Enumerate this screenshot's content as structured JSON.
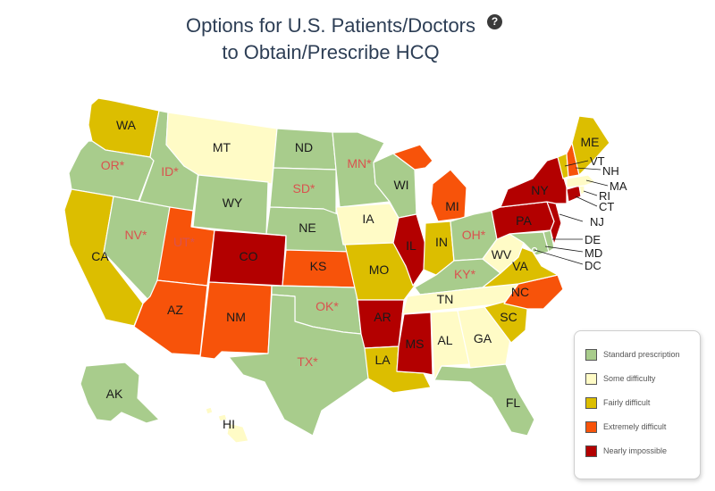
{
  "title": {
    "line1": "Options for U.S. Patients/Doctors",
    "line2": "to Obtain/Prescribe HCQ",
    "help_icon": "question-circle-icon",
    "help_glyph": "?"
  },
  "colors": {
    "standard": "#a8cc8c",
    "some": "#fffbc6",
    "fairly": "#dcbe00",
    "extremely": "#f7530a",
    "nearly": "#b30000"
  },
  "legend": [
    {
      "key": "standard",
      "label": "Standard prescription"
    },
    {
      "key": "some",
      "label": "Some difficulty"
    },
    {
      "key": "fairly",
      "label": "Fairly difficult"
    },
    {
      "key": "extremely",
      "label": "Extremely difficult"
    },
    {
      "key": "nearly",
      "label": "Nearly impossible"
    }
  ],
  "states": [
    {
      "abbr": "WA",
      "label": "WA",
      "category": "fairly",
      "asterisk": false
    },
    {
      "abbr": "OR",
      "label": "OR*",
      "category": "standard",
      "asterisk": true
    },
    {
      "abbr": "CA",
      "label": "CA",
      "category": "fairly",
      "asterisk": false
    },
    {
      "abbr": "ID",
      "label": "ID*",
      "category": "standard",
      "asterisk": true
    },
    {
      "abbr": "NV",
      "label": "NV*",
      "category": "standard",
      "asterisk": true
    },
    {
      "abbr": "MT",
      "label": "MT",
      "category": "some",
      "asterisk": false
    },
    {
      "abbr": "WY",
      "label": "WY",
      "category": "standard",
      "asterisk": false
    },
    {
      "abbr": "UT",
      "label": "UT*",
      "category": "extremely",
      "asterisk": true
    },
    {
      "abbr": "AZ",
      "label": "AZ",
      "category": "extremely",
      "asterisk": false
    },
    {
      "abbr": "CO",
      "label": "CO",
      "category": "nearly",
      "asterisk": false
    },
    {
      "abbr": "NM",
      "label": "NM",
      "category": "extremely",
      "asterisk": false
    },
    {
      "abbr": "ND",
      "label": "ND",
      "category": "standard",
      "asterisk": false
    },
    {
      "abbr": "SD",
      "label": "SD*",
      "category": "standard",
      "asterisk": true
    },
    {
      "abbr": "NE",
      "label": "NE",
      "category": "standard",
      "asterisk": false
    },
    {
      "abbr": "KS",
      "label": "KS",
      "category": "extremely",
      "asterisk": false
    },
    {
      "abbr": "OK",
      "label": "OK*",
      "category": "standard",
      "asterisk": true
    },
    {
      "abbr": "TX",
      "label": "TX*",
      "category": "standard",
      "asterisk": true
    },
    {
      "abbr": "MN",
      "label": "MN*",
      "category": "standard",
      "asterisk": true
    },
    {
      "abbr": "IA",
      "label": "IA",
      "category": "some",
      "asterisk": false
    },
    {
      "abbr": "MO",
      "label": "MO",
      "category": "fairly",
      "asterisk": false
    },
    {
      "abbr": "AR",
      "label": "AR",
      "category": "nearly",
      "asterisk": false
    },
    {
      "abbr": "LA",
      "label": "LA",
      "category": "fairly",
      "asterisk": false
    },
    {
      "abbr": "WI",
      "label": "WI",
      "category": "standard",
      "asterisk": false
    },
    {
      "abbr": "IL",
      "label": "IL",
      "category": "nearly",
      "asterisk": false
    },
    {
      "abbr": "MI",
      "label": "MI",
      "category": "extremely",
      "asterisk": false
    },
    {
      "abbr": "IN",
      "label": "IN",
      "category": "fairly",
      "asterisk": false
    },
    {
      "abbr": "OH",
      "label": "OH*",
      "category": "standard",
      "asterisk": true
    },
    {
      "abbr": "KY",
      "label": "KY*",
      "category": "standard",
      "asterisk": true
    },
    {
      "abbr": "TN",
      "label": "TN",
      "category": "some",
      "asterisk": false
    },
    {
      "abbr": "MS",
      "label": "MS",
      "category": "nearly",
      "asterisk": false
    },
    {
      "abbr": "AL",
      "label": "AL",
      "category": "some",
      "asterisk": false
    },
    {
      "abbr": "GA",
      "label": "GA",
      "category": "some",
      "asterisk": false
    },
    {
      "abbr": "FL",
      "label": "FL",
      "category": "standard",
      "asterisk": false
    },
    {
      "abbr": "SC",
      "label": "SC",
      "category": "fairly",
      "asterisk": false
    },
    {
      "abbr": "NC",
      "label": "NC",
      "category": "extremely",
      "asterisk": false
    },
    {
      "abbr": "VA",
      "label": "VA",
      "category": "fairly",
      "asterisk": false
    },
    {
      "abbr": "WV",
      "label": "WV",
      "category": "some",
      "asterisk": false
    },
    {
      "abbr": "PA",
      "label": "PA",
      "category": "nearly",
      "asterisk": false
    },
    {
      "abbr": "NY",
      "label": "NY",
      "category": "nearly",
      "asterisk": false
    },
    {
      "abbr": "VT",
      "label": "VT",
      "category": "fairly",
      "asterisk": false
    },
    {
      "abbr": "NH",
      "label": "NH",
      "category": "extremely",
      "asterisk": false
    },
    {
      "abbr": "ME",
      "label": "ME",
      "category": "fairly",
      "asterisk": false
    },
    {
      "abbr": "MA",
      "label": "MA",
      "category": "some",
      "asterisk": false
    },
    {
      "abbr": "RI",
      "label": "RI",
      "category": "some",
      "asterisk": false
    },
    {
      "abbr": "CT",
      "label": "CT",
      "category": "nearly",
      "asterisk": false
    },
    {
      "abbr": "NJ",
      "label": "NJ",
      "category": "nearly",
      "asterisk": false
    },
    {
      "abbr": "DE",
      "label": "DE",
      "category": "standard",
      "asterisk": false
    },
    {
      "abbr": "MD",
      "label": "MD",
      "category": "standard",
      "asterisk": false
    },
    {
      "abbr": "DC",
      "label": "DC",
      "category": "standard",
      "asterisk": false
    },
    {
      "abbr": "AK",
      "label": "AK",
      "category": "standard",
      "asterisk": false
    },
    {
      "abbr": "HI",
      "label": "HI",
      "category": "some",
      "asterisk": false
    }
  ]
}
